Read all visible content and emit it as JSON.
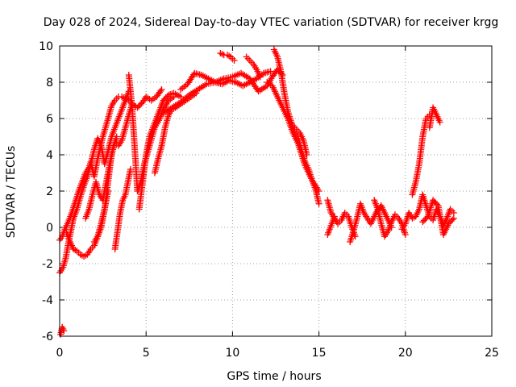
{
  "chart_data": {
    "type": "scatter",
    "title": "Day 028 of 2024, Sidereal Day-to-day VTEC variation (SDTVAR) for receiver krgg",
    "xlabel": "GPS time / hours",
    "ylabel": "SDTVAR / TECUs",
    "xlim": [
      0,
      25
    ],
    "ylim": [
      -6,
      10
    ],
    "x_ticks": [
      0,
      5,
      10,
      15,
      20,
      25
    ],
    "y_ticks": [
      -6,
      -4,
      -2,
      0,
      2,
      4,
      6,
      8,
      10
    ],
    "grid": true,
    "marker": "+",
    "color": "#ff0000",
    "series": [
      {
        "name": "s1",
        "x": [
          0.0,
          0.15,
          0.3,
          0.5,
          0.7,
          0.9,
          1.1,
          1.3,
          1.5,
          1.7,
          1.8,
          1.9,
          2.0,
          2.2,
          2.5,
          2.8,
          3.0,
          3.2,
          3.4,
          3.6,
          3.8,
          4.0,
          4.2,
          4.5,
          4.8,
          5.0,
          5.3,
          5.6,
          5.9
        ],
        "y": [
          -0.7,
          -0.5,
          -0.1,
          0.3,
          0.8,
          1.4,
          2.0,
          2.5,
          3.0,
          3.3,
          3.6,
          3.2,
          2.8,
          3.8,
          5.0,
          6.0,
          6.7,
          7.0,
          7.2,
          7.2,
          7.1,
          7.0,
          6.8,
          6.6,
          6.9,
          7.2,
          7.0,
          7.2,
          7.6
        ]
      },
      {
        "name": "s2",
        "x": [
          0.0,
          0.2,
          0.35,
          0.5,
          0.65,
          0.8,
          1.0,
          1.2,
          1.4,
          1.6,
          1.8,
          2.0,
          2.2,
          2.4,
          2.6,
          2.8,
          3.0,
          3.2,
          3.4,
          3.6,
          3.8,
          4.0
        ],
        "y": [
          -2.5,
          -2.2,
          -1.7,
          -0.9,
          -0.2,
          0.5,
          1.0,
          1.7,
          2.3,
          2.8,
          3.5,
          4.3,
          4.9,
          4.5,
          3.5,
          4.2,
          5.0,
          5.5,
          6.0,
          6.5,
          7.0,
          7.5
        ]
      },
      {
        "name": "s3",
        "x": [
          0.05,
          0.15,
          0.25
        ],
        "y": [
          -5.9,
          -5.5,
          -5.7
        ]
      },
      {
        "name": "s4",
        "x": [
          0.4,
          0.6,
          0.8,
          1.0,
          1.2,
          1.4,
          1.6,
          1.8,
          2.0,
          2.2,
          2.4,
          2.6,
          2.8
        ],
        "y": [
          -0.3,
          -0.8,
          -1.2,
          -1.3,
          -1.5,
          -1.6,
          -1.5,
          -1.2,
          -1.0,
          -0.5,
          0.2,
          1.0,
          2.0
        ]
      },
      {
        "name": "s5",
        "x": [
          1.5,
          1.7,
          1.9,
          2.1,
          2.3,
          2.5,
          2.7,
          2.9,
          3.1,
          3.3
        ],
        "y": [
          0.5,
          1.0,
          1.8,
          2.5,
          1.8,
          1.5,
          2.5,
          3.5,
          4.4,
          5.0
        ]
      },
      {
        "name": "s6",
        "x": [
          2.0,
          2.2,
          2.4,
          2.6,
          2.8,
          3.0,
          3.2,
          3.4,
          3.6,
          3.8,
          4.0,
          4.2
        ],
        "y": [
          -0.8,
          -0.5,
          0.0,
          1.0,
          2.5,
          4.0,
          4.7,
          4.5,
          4.8,
          5.5,
          6.2,
          6.8
        ]
      },
      {
        "name": "s7",
        "x": [
          3.2,
          3.35,
          3.5,
          3.65,
          3.8,
          3.95,
          4.1
        ],
        "y": [
          -1.2,
          -0.2,
          0.8,
          1.5,
          1.8,
          2.5,
          3.2
        ]
      },
      {
        "name": "s8",
        "x": [
          4.0,
          4.1,
          4.2,
          4.3,
          4.5,
          4.7,
          4.9,
          5.2,
          5.5,
          5.8,
          6.0,
          6.3,
          6.6
        ],
        "y": [
          8.4,
          7.5,
          6.5,
          5.0,
          2.0,
          2.5,
          3.5,
          4.5,
          5.5,
          6.0,
          6.5,
          7.0,
          7.2
        ]
      },
      {
        "name": "s9",
        "x": [
          4.6,
          4.8,
          5.0,
          5.2,
          5.4,
          5.6,
          5.8,
          6.0,
          6.3,
          6.6,
          7.0
        ],
        "y": [
          1.0,
          2.5,
          4.0,
          5.0,
          5.5,
          6.0,
          6.5,
          7.0,
          7.3,
          7.4,
          7.2
        ]
      },
      {
        "name": "s10",
        "x": [
          5.5,
          5.7,
          5.9,
          6.1,
          6.3,
          6.5,
          6.7,
          7.0,
          7.3,
          7.6,
          7.9
        ],
        "y": [
          3.0,
          3.8,
          4.5,
          5.5,
          6.2,
          6.5,
          6.6,
          6.8,
          7.0,
          7.2,
          7.4
        ]
      },
      {
        "name": "s11",
        "x": [
          6.0,
          6.5,
          7.0,
          7.5,
          8.0,
          8.5,
          9.0,
          9.5,
          10.0,
          10.5,
          11.0,
          11.5,
          12.0,
          12.3,
          12.6,
          12.9
        ],
        "y": [
          6.3,
          6.6,
          6.9,
          7.3,
          7.6,
          7.9,
          8.0,
          8.2,
          8.3,
          8.5,
          8.2,
          7.5,
          7.8,
          8.3,
          8.7,
          8.4
        ]
      },
      {
        "name": "s12",
        "x": [
          7.0,
          7.4,
          7.8,
          8.2,
          8.6,
          9.0,
          9.4,
          9.8,
          10.2,
          10.6,
          11.0,
          11.4,
          11.8,
          12.2
        ],
        "y": [
          7.6,
          7.9,
          8.5,
          8.4,
          8.2,
          8.0,
          7.9,
          8.1,
          8.0,
          7.8,
          8.0,
          8.2,
          8.5,
          8.6
        ]
      },
      {
        "name": "s13",
        "x": [
          9.3,
          9.5,
          9.7,
          9.9,
          10.1
        ],
        "y": [
          9.6,
          9.5,
          9.5,
          9.4,
          9.2
        ]
      },
      {
        "name": "s14",
        "x": [
          10.8,
          11.0,
          11.2,
          11.4,
          11.6
        ],
        "y": [
          9.4,
          9.2,
          9.0,
          8.7,
          8.3
        ]
      },
      {
        "name": "s15",
        "x": [
          12.4,
          12.6,
          12.8,
          13.0,
          13.2,
          13.4,
          13.6,
          13.8,
          14.0,
          14.2,
          14.4,
          14.6,
          14.8,
          15.0
        ],
        "y": [
          9.8,
          9.4,
          8.6,
          7.4,
          6.4,
          5.8,
          5.2,
          4.9,
          4.2,
          3.6,
          3.2,
          2.6,
          2.1,
          1.3
        ]
      },
      {
        "name": "s16",
        "x": [
          12.0,
          12.3,
          12.6,
          12.9,
          13.2,
          13.5,
          13.8,
          14.0,
          14.2,
          14.4,
          14.6,
          14.8,
          15.0
        ],
        "y": [
          8.0,
          7.8,
          7.2,
          6.6,
          6.0,
          5.2,
          4.6,
          4.0,
          3.4,
          3.0,
          2.6,
          2.3,
          2.0
        ]
      },
      {
        "name": "s17",
        "x": [
          13.5,
          13.7,
          13.9,
          14.1,
          14.3
        ],
        "y": [
          5.6,
          5.4,
          5.2,
          4.8,
          4.0
        ]
      },
      {
        "name": "s18",
        "x": [
          15.5,
          15.7,
          15.9,
          16.1,
          16.3,
          16.5,
          16.7,
          16.9,
          17.1
        ],
        "y": [
          1.5,
          0.8,
          0.5,
          0.2,
          0.4,
          0.8,
          0.6,
          0.0,
          -0.5
        ]
      },
      {
        "name": "s19",
        "x": [
          15.5,
          15.7,
          15.9
        ],
        "y": [
          -0.4,
          0.1,
          0.6
        ]
      },
      {
        "name": "s20",
        "x": [
          16.8,
          17.0,
          17.2,
          17.4,
          17.6,
          17.8,
          18.0,
          18.3,
          18.6,
          18.9,
          19.2
        ],
        "y": [
          -0.8,
          -0.2,
          0.5,
          1.3,
          0.8,
          0.5,
          0.2,
          0.8,
          1.2,
          0.6,
          0.0
        ]
      },
      {
        "name": "s21",
        "x": [
          18.2,
          18.4,
          18.6,
          18.8,
          19.0,
          19.2,
          19.4,
          19.6,
          19.8,
          20.0
        ],
        "y": [
          1.5,
          1.0,
          0.2,
          -0.5,
          -0.2,
          0.3,
          0.7,
          0.5,
          0.2,
          -0.4
        ]
      },
      {
        "name": "s22",
        "x": [
          19.8,
          20.0,
          20.2,
          20.4,
          20.6,
          20.8,
          21.0,
          21.2,
          21.4,
          21.6,
          21.8,
          22.0,
          22.2,
          22.4,
          22.6,
          22.8
        ],
        "y": [
          -0.1,
          0.2,
          0.8,
          0.5,
          0.6,
          1.0,
          1.8,
          1.2,
          0.6,
          0.4,
          1.0,
          0.6,
          0.1,
          0.5,
          1.0,
          0.8
        ]
      },
      {
        "name": "s23",
        "x": [
          20.4,
          20.6,
          20.8,
          21.0,
          21.2,
          21.4
        ],
        "y": [
          1.8,
          2.5,
          3.5,
          5.0,
          6.0,
          6.2
        ]
      },
      {
        "name": "s24",
        "x": [
          21.4,
          21.6,
          21.8,
          22.0
        ],
        "y": [
          5.5,
          6.6,
          6.2,
          5.8
        ]
      },
      {
        "name": "s25",
        "x": [
          21.0,
          21.3,
          21.6,
          21.9,
          22.2,
          22.5,
          22.8
        ],
        "y": [
          0.3,
          0.6,
          1.5,
          1.2,
          -0.4,
          0.2,
          0.5
        ]
      }
    ]
  }
}
